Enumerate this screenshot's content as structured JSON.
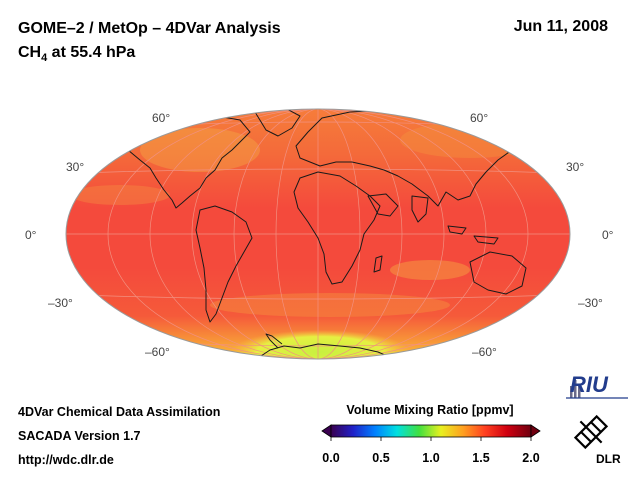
{
  "header": {
    "title": "GOME–2 / MetOp – 4DVar Analysis",
    "species_main": "CH",
    "species_sub": "4",
    "level": " at 55.4 hPa",
    "date": "Jun 11, 2008"
  },
  "map": {
    "projection": "Hammer-Aitoff (global)",
    "lat_labels": {
      "left": [
        "60°",
        "30°",
        "0°",
        "–30°",
        "–60°"
      ],
      "right": [
        "60°",
        "30°",
        "0°",
        "–30°",
        "–60°"
      ]
    },
    "colors": {
      "ocean_field": "#f44a3a",
      "high_band": "#f67d35",
      "antarctic": "#d5f244"
    }
  },
  "footer": {
    "line1": "4DVar Chemical Data Assimilation",
    "line2": "SACADA Version 1.7",
    "line3": "http://wdc.dlr.de"
  },
  "colorbar": {
    "title": "Volume Mixing Ratio [ppmv]",
    "ticks": [
      "0.0",
      "0.5",
      "1.0",
      "1.5",
      "2.0"
    ],
    "colors": [
      "#3a0050",
      "#2020c8",
      "#0080ff",
      "#00e0e0",
      "#40e040",
      "#e8f020",
      "#ffa020",
      "#ff4020",
      "#d00010",
      "#700010"
    ]
  },
  "logos": {
    "riu": "RIU",
    "dlr": "DLR"
  }
}
